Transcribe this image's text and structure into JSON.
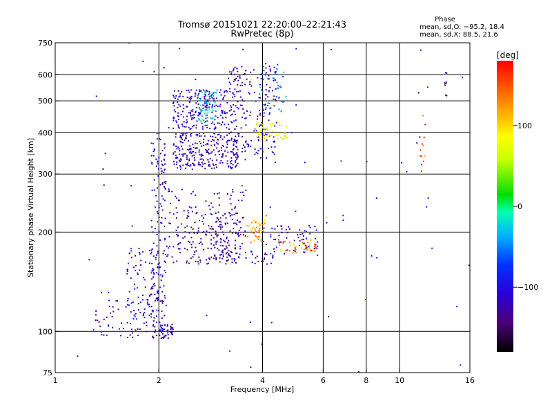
{
  "chart_data": {
    "type": "scatter",
    "title": "Tromsø 20151021 22:20:00–22:21:43",
    "subtitle": "RwPretec (8p)",
    "xlabel": "Frequency [MHz]",
    "ylabel": "Stationary phase Virtual Height [km]",
    "x_scale": "log",
    "y_scale": "log",
    "xlim": [
      1,
      16
    ],
    "ylim": [
      75,
      750
    ],
    "x_ticks": [
      1,
      2,
      4,
      6,
      8,
      10,
      16
    ],
    "y_ticks": [
      75,
      100,
      200,
      300,
      400,
      500,
      600,
      750
    ],
    "grid_x": [
      2,
      4,
      6,
      8,
      10
    ],
    "grid_y": [
      100,
      200,
      300,
      400,
      500,
      600
    ],
    "grid": true,
    "phase_stats": {
      "title": "Phase",
      "line_o": "mean, sd,O: −95.2, 18.4",
      "line_x": "mean, sd,X:  88.5, 21.6"
    },
    "colorbar": {
      "label": "[deg]",
      "range": [
        -180,
        180
      ],
      "ticks": [
        100,
        0,
        -100
      ],
      "tick_labels": [
        "100",
        "0",
        "−100"
      ],
      "colormap": "rainbow"
    },
    "clusters": [
      {
        "fmin": 1.9,
        "fmax": 2.1,
        "hmin": 95,
        "hmax": 400,
        "phase": -115,
        "n": 160
      },
      {
        "fmin": 2.0,
        "fmax": 2.2,
        "hmin": 95,
        "hmax": 105,
        "phase": -110,
        "n": 40
      },
      {
        "fmin": 1.6,
        "fmax": 2.0,
        "hmin": 100,
        "hmax": 180,
        "phase": -120,
        "n": 90
      },
      {
        "fmin": 1.25,
        "fmax": 1.9,
        "hmin": 95,
        "hmax": 125,
        "phase": -115,
        "n": 50
      },
      {
        "fmin": 2.2,
        "fmax": 3.3,
        "hmin": 410,
        "hmax": 540,
        "phase": -110,
        "n": 220
      },
      {
        "fmin": 2.6,
        "fmax": 2.95,
        "hmin": 430,
        "hmax": 540,
        "phase": -30,
        "n": 60
      },
      {
        "fmin": 2.2,
        "fmax": 3.4,
        "hmin": 310,
        "hmax": 400,
        "phase": -120,
        "n": 260
      },
      {
        "fmin": 3.2,
        "fmax": 4.4,
        "hmin": 330,
        "hmax": 640,
        "phase": -120,
        "n": 200
      },
      {
        "fmin": 3.8,
        "fmax": 4.7,
        "hmin": 380,
        "hmax": 430,
        "phase": 80,
        "n": 50
      },
      {
        "fmin": 3.9,
        "fmax": 4.7,
        "hmin": 450,
        "hmax": 640,
        "phase": -60,
        "n": 40
      },
      {
        "fmin": 2.1,
        "fmax": 3.6,
        "hmin": 160,
        "hmax": 270,
        "phase": -125,
        "n": 200
      },
      {
        "fmin": 2.8,
        "fmax": 3.5,
        "hmin": 160,
        "hmax": 230,
        "phase": -140,
        "n": 80
      },
      {
        "fmin": 3.6,
        "fmax": 4.1,
        "hmin": 185,
        "hmax": 225,
        "phase": 120,
        "n": 45
      },
      {
        "fmin": 4.0,
        "fmax": 5.8,
        "hmin": 170,
        "hmax": 210,
        "phase": -125,
        "n": 70
      },
      {
        "fmin": 4.4,
        "fmax": 5.8,
        "hmin": 172,
        "hmax": 190,
        "phase": 125,
        "n": 40
      },
      {
        "fmin": 3.7,
        "fmax": 4.3,
        "hmin": 160,
        "hmax": 175,
        "phase": -110,
        "n": 20
      },
      {
        "fmin": 11.5,
        "fmax": 11.9,
        "hmin": 300,
        "hmax": 470,
        "phase": 150,
        "n": 12
      },
      {
        "fmin": 13.5,
        "fmax": 13.7,
        "hmin": 510,
        "hmax": 620,
        "phase": -130,
        "n": 8
      },
      {
        "fmin": 1.0,
        "fmax": 16.0,
        "hmin": 75,
        "hmax": 750,
        "phase": -100,
        "n": 80
      }
    ]
  }
}
